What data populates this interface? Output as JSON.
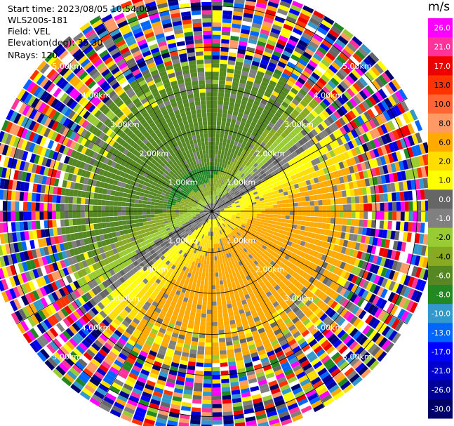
{
  "info": {
    "start_time": "Start time: 2023/08/05 10:54:00",
    "station": "WLS200s-181",
    "field": "Field: VEL",
    "elevation": "Elevation(deg): 35.30",
    "nrays": "NRays: 120"
  },
  "colorbar": {
    "unit": "m/s",
    "ticks": [
      "26.0",
      "21.0",
      "17.0",
      "13.0",
      "10.0",
      "8.0",
      "6.0",
      "2.0",
      "1.0",
      "0.0",
      "-1.0",
      "-2.0",
      "-4.0",
      "-6.0",
      "-8.0",
      "-10.0",
      "-13.0",
      "-17.0",
      "-21.0",
      "-26.0",
      "-30.0"
    ],
    "colors": [
      "#ff00ff",
      "#ff3399",
      "#ee0000",
      "#ff3300",
      "#ff6633",
      "#ff9966",
      "#ffaa00",
      "#ffdd00",
      "#ffff00",
      "#666666",
      "#808080",
      "#99cc33",
      "#88aa22",
      "#558822",
      "#228822",
      "#3399cc",
      "#0066ff",
      "#0000ff",
      "#0000cc",
      "#000099",
      "#000066"
    ]
  },
  "chart_data": {
    "type": "ppi",
    "field": "VEL",
    "units": "m/s",
    "nrays": 120,
    "range_rings_km": [
      1.0,
      2.0,
      3.0,
      4.0,
      5.0
    ],
    "ring_labels": [
      "1.00km",
      "2.00km",
      "3.00km",
      "4.00km",
      "5.00km"
    ],
    "max_range_km": 5.5
  }
}
